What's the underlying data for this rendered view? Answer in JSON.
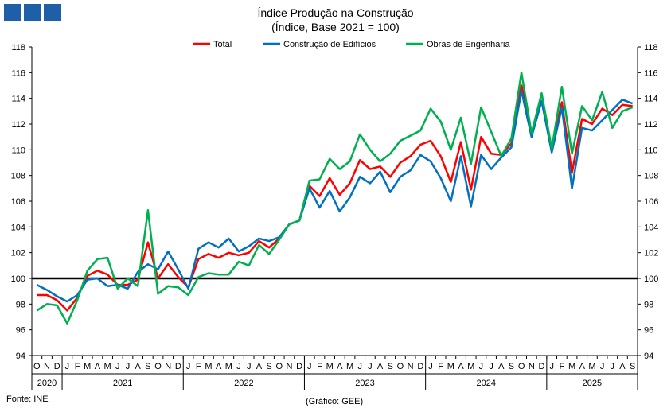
{
  "header": {
    "title": "Índice Produção na Construção",
    "subtitle": "(Índice, Base 2021 = 100)"
  },
  "footer": {
    "source": "Fonte: INE",
    "credit": "(Gráfico: GEE)"
  },
  "chart_data": {
    "type": "line",
    "title": "Índice Produção na Construção",
    "subtitle": "(Índice, Base 2021 = 100)",
    "ylim": [
      94,
      118
    ],
    "yticks": [
      94,
      96,
      98,
      100,
      102,
      104,
      106,
      108,
      110,
      112,
      114,
      116,
      118
    ],
    "reference_line": 100,
    "legend_position": "top",
    "month_labels": [
      "O",
      "N",
      "D",
      "J",
      "F",
      "M",
      "A",
      "M",
      "J",
      "J",
      "A",
      "S",
      "O",
      "N",
      "D",
      "J",
      "F",
      "M",
      "A",
      "M",
      "J",
      "J",
      "A",
      "S",
      "O",
      "N",
      "D",
      "J",
      "F",
      "M",
      "A",
      "M",
      "J",
      "J",
      "A",
      "S",
      "O",
      "N",
      "D",
      "J",
      "F",
      "M",
      "A",
      "M",
      "J",
      "J",
      "A",
      "S",
      "O",
      "N",
      "D",
      "J",
      "F",
      "M",
      "A",
      "M",
      "J",
      "J",
      "A",
      "S"
    ],
    "years": [
      {
        "label": "2020",
        "months": 3
      },
      {
        "label": "2021",
        "months": 12
      },
      {
        "label": "2022",
        "months": 12
      },
      {
        "label": "2023",
        "months": 12
      },
      {
        "label": "2024",
        "months": 12
      },
      {
        "label": "2025",
        "months": 9
      }
    ],
    "series": [
      {
        "name": "Total",
        "color": "#ff0000",
        "values": [
          98.7,
          98.7,
          98.3,
          97.5,
          98.5,
          100.2,
          100.6,
          100.3,
          99.5,
          99.5,
          99.9,
          102.8,
          100.0,
          101.1,
          100.1,
          99.3,
          101.5,
          101.9,
          101.6,
          102.0,
          101.8,
          102.0,
          102.9,
          102.4,
          103.1,
          104.2,
          104.5,
          107.2,
          106.4,
          107.8,
          106.5,
          107.4,
          109.2,
          108.5,
          108.7,
          107.9,
          109.0,
          109.5,
          110.4,
          110.7,
          109.5,
          107.5,
          110.6,
          106.9,
          111.0,
          109.7,
          109.6,
          110.5,
          115.0,
          111.3,
          113.8,
          110.0,
          113.7,
          108.2,
          112.4,
          112.0,
          113.2,
          112.7,
          113.5,
          113.4
        ]
      },
      {
        "name": "Construção de Edifícios",
        "color": "#0070c0",
        "values": [
          99.5,
          99.1,
          98.6,
          98.2,
          98.7,
          99.9,
          100.0,
          99.4,
          99.5,
          99.2,
          100.5,
          101.1,
          100.7,
          102.1,
          100.7,
          99.2,
          102.3,
          102.8,
          102.4,
          103.1,
          102.1,
          102.5,
          103.1,
          102.9,
          103.2,
          104.2,
          104.5,
          107.0,
          105.5,
          106.8,
          105.2,
          106.3,
          107.9,
          107.4,
          108.3,
          106.7,
          107.9,
          108.4,
          109.6,
          109.1,
          107.8,
          106.0,
          109.5,
          105.6,
          109.6,
          108.5,
          109.4,
          110.2,
          114.6,
          111.0,
          113.8,
          109.8,
          113.3,
          107.0,
          111.7,
          111.5,
          112.3,
          113.1,
          113.9,
          113.6
        ]
      },
      {
        "name": "Obras de Engenharia",
        "color": "#00b050",
        "values": [
          97.5,
          98.0,
          97.9,
          96.5,
          98.3,
          100.6,
          101.5,
          101.6,
          99.2,
          100.0,
          99.4,
          105.3,
          98.8,
          99.4,
          99.3,
          98.7,
          100.1,
          100.4,
          100.3,
          100.3,
          101.3,
          101.0,
          102.6,
          101.9,
          103.0,
          104.2,
          104.5,
          107.6,
          107.7,
          109.3,
          108.5,
          109.1,
          111.2,
          110.0,
          109.1,
          109.7,
          110.7,
          111.1,
          111.5,
          113.2,
          112.2,
          110.0,
          112.5,
          108.9,
          113.3,
          111.4,
          109.5,
          110.9,
          116.0,
          111.3,
          114.4,
          110.1,
          114.9,
          109.7,
          113.4,
          112.3,
          114.5,
          111.7,
          113.0,
          113.3
        ]
      }
    ]
  }
}
